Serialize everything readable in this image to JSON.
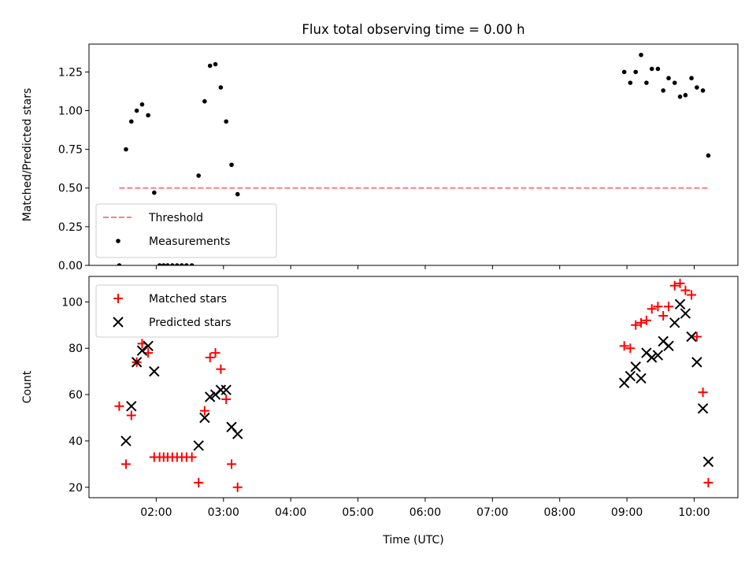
{
  "figure": {
    "title": "Flux total observing time = 0.00 h"
  },
  "colors": {
    "threshold": "#ff7f7f",
    "measurement": "#000000",
    "matched": "#ff0000",
    "predicted": "#000000"
  },
  "chart_data": [
    {
      "type": "scatter",
      "panel": "top",
      "title": "Flux total observing time = 0.00 h",
      "xlabel": "",
      "ylabel": "Matched/Predicted stars",
      "ylim": [
        0,
        1.43
      ],
      "yticks": [
        0.0,
        0.25,
        0.5,
        0.75,
        1.0,
        1.25
      ],
      "ytick_labels": [
        "0.00",
        "0.25",
        "0.50",
        "0.75",
        "1.00",
        "1.25"
      ],
      "xlim_hours": [
        1.0,
        10.65
      ],
      "legend": {
        "placement": "lower-left",
        "entries": [
          "Threshold",
          "Measurements"
        ]
      },
      "threshold": {
        "name": "Threshold",
        "value": 0.5,
        "x_range_hours": [
          1.45,
          10.2
        ],
        "style": "dashed"
      },
      "series": [
        {
          "name": "Measurements",
          "marker": "dot",
          "x_hours": [
            1.45,
            1.55,
            1.63,
            1.71,
            1.79,
            1.88,
            1.97,
            2.05,
            2.11,
            2.17,
            2.24,
            2.31,
            2.38,
            2.45,
            2.53,
            2.63,
            2.72,
            2.8,
            2.88,
            2.96,
            3.04,
            3.12,
            3.21,
            8.96,
            9.05,
            9.13,
            9.21,
            9.29,
            9.37,
            9.46,
            9.54,
            9.62,
            9.71,
            9.79,
            9.87,
            9.96,
            10.04,
            10.13,
            10.21
          ],
          "y": [
            0.0,
            0.75,
            0.93,
            1.0,
            1.04,
            0.97,
            0.47,
            0.0,
            0.0,
            0.0,
            0.0,
            0.0,
            0.0,
            0.0,
            0.0,
            0.58,
            1.06,
            1.29,
            1.3,
            1.15,
            0.93,
            0.65,
            0.46,
            1.25,
            1.18,
            1.25,
            1.36,
            1.18,
            1.27,
            1.27,
            1.13,
            1.21,
            1.18,
            1.09,
            1.1,
            1.21,
            1.15,
            1.13,
            0.71
          ]
        }
      ]
    },
    {
      "type": "scatter",
      "panel": "bottom",
      "xlabel": "Time (UTC)",
      "ylabel": "Count",
      "ylim": [
        15.5,
        111
      ],
      "yticks": [
        20,
        40,
        60,
        80,
        100
      ],
      "ytick_labels": [
        "20",
        "40",
        "60",
        "80",
        "100"
      ],
      "xlim_hours": [
        1.0,
        10.65
      ],
      "xticks_hours": [
        2,
        3,
        4,
        5,
        6,
        7,
        8,
        9,
        10
      ],
      "xtick_labels": [
        "02:00",
        "03:00",
        "04:00",
        "05:00",
        "06:00",
        "07:00",
        "08:00",
        "09:00",
        "10:00"
      ],
      "legend": {
        "placement": "top-left",
        "entries": [
          "Matched stars",
          "Predicted stars"
        ]
      },
      "series": [
        {
          "name": "Matched stars",
          "marker": "plus",
          "x_hours": [
            1.45,
            1.55,
            1.63,
            1.71,
            1.79,
            1.88,
            1.97,
            2.05,
            2.11,
            2.17,
            2.24,
            2.31,
            2.38,
            2.45,
            2.53,
            2.63,
            2.72,
            2.8,
            2.88,
            2.96,
            3.04,
            3.12,
            3.21,
            8.96,
            9.05,
            9.13,
            9.21,
            9.29,
            9.37,
            9.46,
            9.54,
            9.62,
            9.71,
            9.79,
            9.87,
            9.96,
            10.04,
            10.13,
            10.21
          ],
          "y": [
            55,
            30,
            51,
            74,
            82,
            78,
            33,
            33,
            33,
            33,
            33,
            33,
            33,
            33,
            33,
            22,
            53,
            76,
            78,
            71,
            58,
            30,
            20,
            81,
            80,
            90,
            91,
            92,
            97,
            98,
            94,
            98,
            107,
            108,
            105,
            103,
            85,
            61,
            22
          ]
        },
        {
          "name": "Predicted stars",
          "marker": "x",
          "x_hours": [
            1.55,
            1.63,
            1.71,
            1.79,
            1.88,
            1.97,
            2.63,
            2.72,
            2.8,
            2.88,
            2.96,
            3.04,
            3.12,
            3.21,
            8.96,
            9.05,
            9.13,
            9.21,
            9.29,
            9.37,
            9.46,
            9.54,
            9.62,
            9.71,
            9.79,
            9.87,
            9.96,
            10.04,
            10.13,
            10.21
          ],
          "y": [
            40,
            55,
            74,
            79,
            81,
            70,
            38,
            50,
            59,
            60,
            62,
            62,
            46,
            43,
            65,
            68,
            72,
            67,
            78,
            76,
            77,
            83,
            81,
            91,
            99,
            95,
            85,
            74,
            54,
            31
          ]
        }
      ]
    }
  ]
}
